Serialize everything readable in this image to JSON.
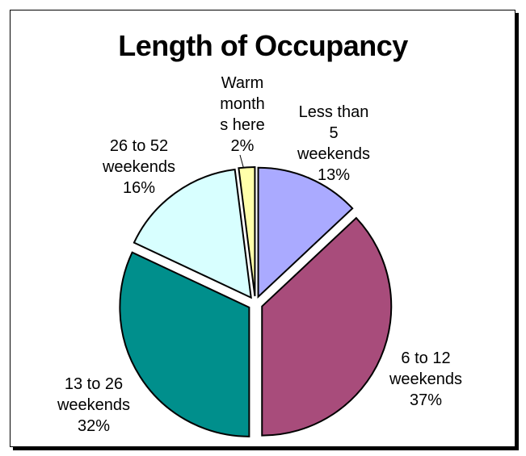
{
  "chart_data": {
    "type": "pie",
    "title": "Length of Occupancy",
    "categories": [
      "Less than 5 weekends",
      "6 to 12 weekends",
      "13 to 26 weekends",
      "26 to 52 weekends",
      "Warm months here"
    ],
    "values": [
      13,
      37,
      32,
      16,
      2
    ],
    "value_labels": [
      "13%",
      "37%",
      "32%",
      "16%",
      "2%"
    ],
    "colors": [
      "#aaaaff",
      "#a84c7b",
      "#008f8c",
      "#d8ffff",
      "#ffffaa"
    ]
  }
}
